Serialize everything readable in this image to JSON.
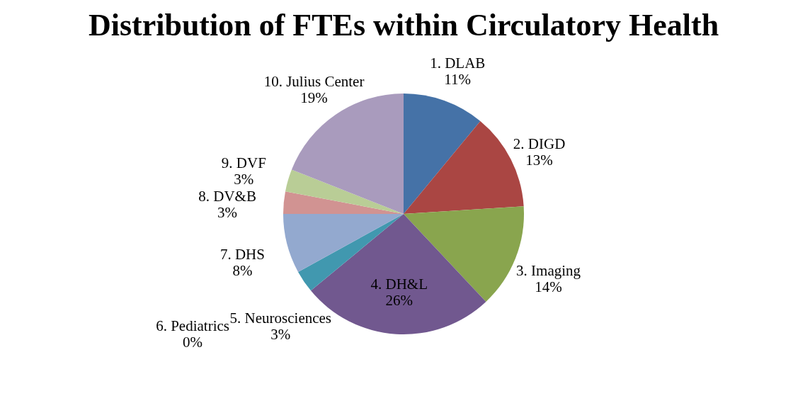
{
  "chart_data": {
    "type": "pie",
    "title": "Distribution of FTEs within Circulatory Health",
    "categories": [
      "1. DLAB",
      "2. DIGD",
      "3. Imaging",
      "4. DH&L",
      "5. Neurosciences",
      "6. Pediatrics",
      "7. DHS",
      "8. DV&B",
      "9. DVF",
      "10. Julius Center"
    ],
    "values": [
      11,
      13,
      14,
      26,
      3,
      0,
      8,
      3,
      3,
      19
    ],
    "value_labels": [
      "11%",
      "13%",
      "14%",
      "26%",
      "3%",
      "0%",
      "8%",
      "3%",
      "3%",
      "19%"
    ],
    "colors": [
      "#4572a7",
      "#aa4643",
      "#89a54e",
      "#71588f",
      "#4198af",
      "#db843d",
      "#93a9cf",
      "#d19392",
      "#b9cd96",
      "#a99bbd"
    ],
    "legend": false
  }
}
